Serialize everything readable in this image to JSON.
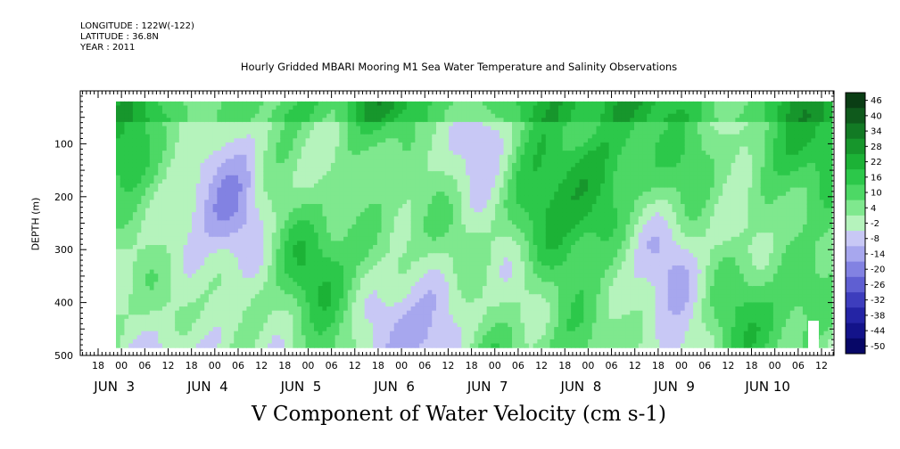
{
  "meta": {
    "longitude": "LONGITUDE : 122W(-122)",
    "latitude": "LATITUDE : 36.8N",
    "year": "YEAR : 2011"
  },
  "chart_data": {
    "type": "heatmap",
    "title": "Hourly Gridded MBARI Mooring M1 Sea Water Temperature and Salinity Observations",
    "xlabel": "V Component of Water Velocity (cm s-1)",
    "ylabel": "DEPTH (m)",
    "y_range": [
      0,
      500
    ],
    "y_reversed": true,
    "y_ticks": [
      100,
      200,
      300,
      400,
      500
    ],
    "x_hour_ticks": [
      "18",
      "00",
      "06",
      "12",
      "18",
      "00",
      "06",
      "12",
      "18",
      "00",
      "06",
      "12",
      "18",
      "00",
      "06",
      "12",
      "18",
      "00",
      "06",
      "12",
      "18",
      "00",
      "06",
      "12",
      "18",
      "00",
      "06",
      "12",
      "18",
      "00",
      "06",
      "12"
    ],
    "x_day_labels": [
      "JUN  3",
      "JUN  4",
      "JUN  5",
      "JUN  6",
      "JUN  7",
      "JUN  8",
      "JUN  9",
      "JUN 10"
    ],
    "colorbar": {
      "levels": [
        46,
        40,
        34,
        28,
        22,
        16,
        10,
        4,
        -2,
        -8,
        -14,
        -20,
        -26,
        -32,
        -38,
        -44,
        -50
      ],
      "colors": [
        "#0a3d14",
        "#0f5a1c",
        "#127a24",
        "#17962c",
        "#1cb236",
        "#2cc84a",
        "#4dd865",
        "#7fe88e",
        "#b5f3bc",
        "#c8c8f5",
        "#a7a7ee",
        "#8282e2",
        "#5f5fd2",
        "#3d3dbd",
        "#2424a5",
        "#13138a",
        "#070767"
      ]
    },
    "observations": "Sea water velocity v-component vs depth, Jun 3 - Jun 10 2011; mostly between -20 and +22 cm/s, strongest positive (northward) flow near surface Jun 7-9."
  }
}
